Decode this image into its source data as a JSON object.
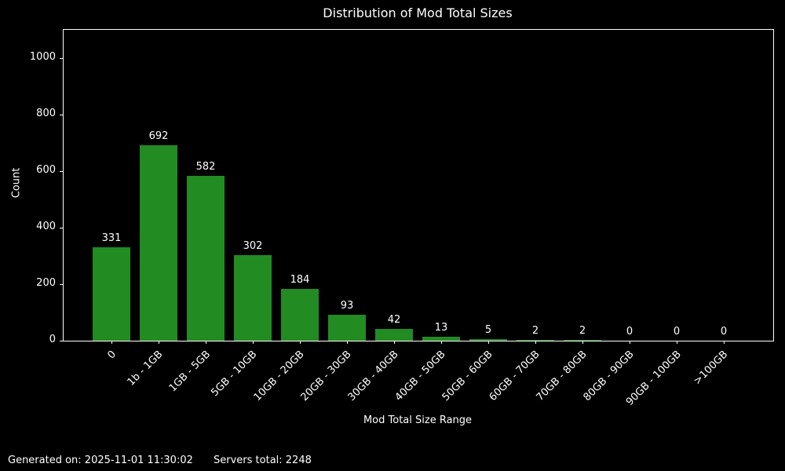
{
  "title": "Distribution of Mod Total Sizes",
  "footer": {
    "generated": "Generated on: 2025-11-01 11:30:02",
    "servers_total": "Servers total: 2248"
  },
  "chart_data": {
    "type": "bar",
    "title": "Distribution of Mod Total Sizes",
    "xlabel": "Mod Total Size Range",
    "ylabel": "Count",
    "categories": [
      "0",
      "1b - 1GB",
      "1GB - 5GB",
      "5GB - 10GB",
      "10GB - 20GB",
      "20GB - 30GB",
      "30GB - 40GB",
      "40GB - 50GB",
      "50GB - 60GB",
      "60GB - 70GB",
      "70GB - 80GB",
      "80GB - 90GB",
      "90GB - 100GB",
      ">100GB"
    ],
    "values": [
      331,
      692,
      582,
      302,
      184,
      93,
      42,
      13,
      5,
      2,
      2,
      0,
      0,
      0
    ],
    "yticks": [
      0,
      200,
      400,
      600,
      800,
      1000
    ],
    "ylim": [
      0,
      1100
    ],
    "bar_color": "#228B22",
    "background_color": "#000000",
    "text_color": "#ffffff",
    "grid": false,
    "legend": null,
    "bar_value_labels_shown": true,
    "x_tick_rotation_deg": 45
  }
}
